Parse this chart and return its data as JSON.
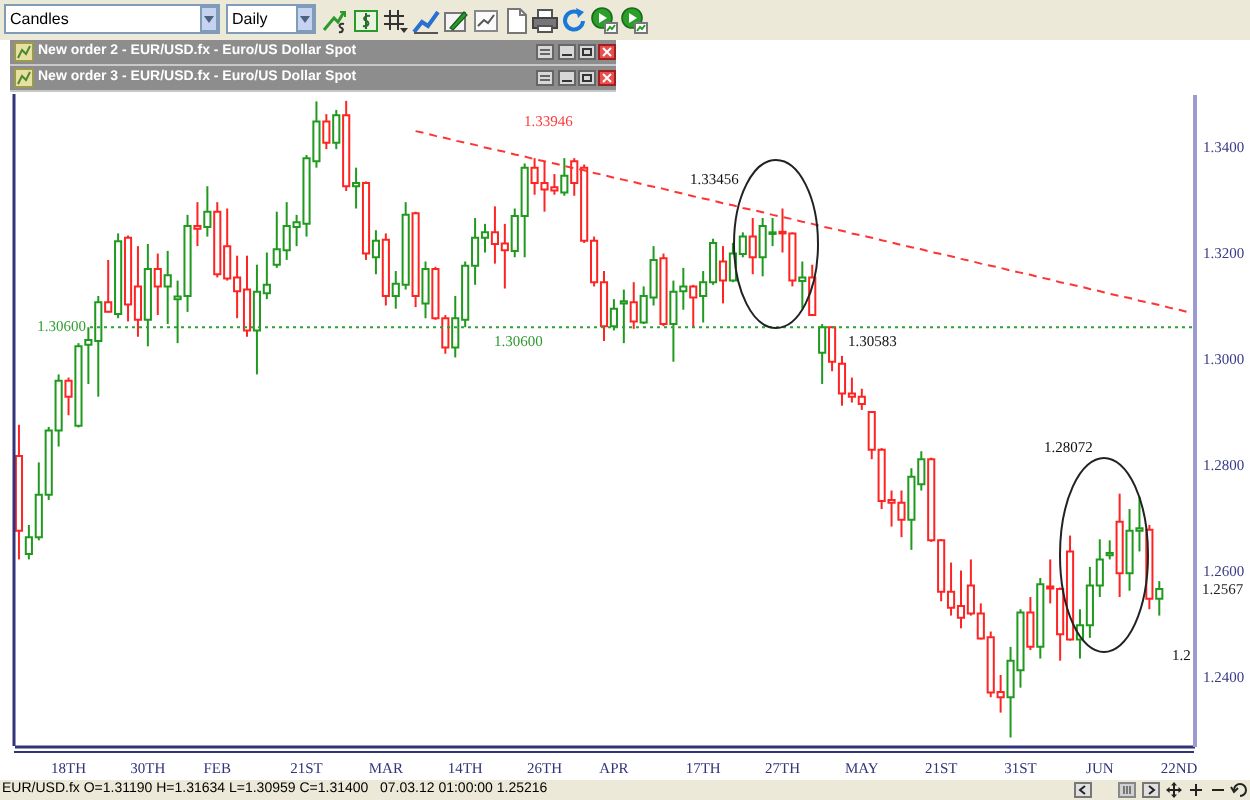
{
  "chart_data": {
    "type": "candlestick",
    "categories": [
      null,
      null,
      null,
      null,
      null,
      "18TH",
      null,
      null,
      null,
      null,
      null,
      null,
      null,
      "30TH",
      null,
      null,
      null,
      null,
      null,
      null,
      "FEB",
      null,
      null,
      null,
      null,
      null,
      null,
      null,
      null,
      "21ST",
      null,
      null,
      null,
      null,
      null,
      null,
      null,
      "MAR",
      null,
      null,
      null,
      null,
      null,
      null,
      null,
      "14TH",
      null,
      null,
      null,
      null,
      null,
      null,
      null,
      "26TH",
      null,
      null,
      null,
      null,
      null,
      null,
      "APR",
      null,
      null,
      null,
      null,
      null,
      null,
      null,
      null,
      "17TH",
      null,
      null,
      null,
      null,
      null,
      null,
      null,
      "27TH",
      null,
      null,
      null,
      null,
      null,
      null,
      null,
      "MAY",
      null,
      null,
      null,
      null,
      null,
      null,
      null,
      "21ST",
      null,
      null,
      null,
      null,
      null,
      null,
      null,
      "31ST",
      null,
      null,
      null,
      null,
      null,
      null,
      null,
      "JUN",
      null,
      null,
      null,
      null,
      null,
      null,
      null,
      "22ND",
      null
    ],
    "ohlc": [
      [
        1.2817,
        1.2876,
        1.2622,
        1.2676
      ],
      [
        1.2632,
        1.2687,
        1.2622,
        1.2664
      ],
      [
        1.2664,
        1.2805,
        1.2658,
        1.2744
      ],
      [
        1.2744,
        1.2872,
        1.2734,
        1.2865
      ],
      [
        1.2865,
        1.2971,
        1.2835,
        1.2959
      ],
      [
        1.2959,
        1.2965,
        1.2894,
        1.2929
      ],
      [
        1.2874,
        1.303,
        1.2871,
        1.3024
      ],
      [
        1.3027,
        1.306,
        1.2953,
        1.3036
      ],
      [
        1.3034,
        1.3119,
        1.2929,
        1.3107
      ],
      [
        1.3107,
        1.3187,
        1.3088,
        1.3089
      ],
      [
        1.3085,
        1.3237,
        1.3077,
        1.3222
      ],
      [
        1.3229,
        1.3233,
        1.3071,
        1.3103
      ],
      [
        1.3137,
        1.3213,
        1.3042,
        1.3074
      ],
      [
        1.3074,
        1.3217,
        1.3024,
        1.317
      ],
      [
        1.317,
        1.3199,
        1.3083,
        1.3137
      ],
      [
        1.3137,
        1.3204,
        1.3066,
        1.3158
      ],
      [
        1.3113,
        1.3148,
        1.303,
        1.3118
      ],
      [
        1.3119,
        1.3272,
        1.3089,
        1.3251
      ],
      [
        1.3251,
        1.3296,
        1.3213,
        1.3246
      ],
      [
        1.3249,
        1.3326,
        1.3231,
        1.3278
      ],
      [
        1.3278,
        1.3296,
        1.3154,
        1.316
      ],
      [
        1.3213,
        1.3284,
        1.3148,
        1.3152
      ],
      [
        1.3154,
        1.3195,
        1.3077,
        1.3128
      ],
      [
        1.3131,
        1.3195,
        1.3042,
        1.3054
      ],
      [
        1.3054,
        1.3178,
        1.2971,
        1.3127
      ],
      [
        1.3124,
        1.3201,
        1.3113,
        1.314
      ],
      [
        1.3178,
        1.3278,
        1.3172,
        1.3207
      ],
      [
        1.3205,
        1.3296,
        1.3187,
        1.3251
      ],
      [
        1.3249,
        1.3272,
        1.3213,
        1.3258
      ],
      [
        1.3255,
        1.3385,
        1.3231,
        1.3379
      ],
      [
        1.3373,
        1.3486,
        1.3361,
        1.3448
      ],
      [
        1.3448,
        1.3462,
        1.3396,
        1.3408
      ],
      [
        1.3408,
        1.347,
        1.3396,
        1.346
      ],
      [
        1.346,
        1.3487,
        1.3317,
        1.3326
      ],
      [
        1.3326,
        1.3361,
        1.3284,
        1.3332
      ],
      [
        1.3332,
        1.3335,
        1.3187,
        1.3199
      ],
      [
        1.3192,
        1.3243,
        1.316,
        1.3223
      ],
      [
        1.3225,
        1.3237,
        1.3101,
        1.3119
      ],
      [
        1.3119,
        1.3166,
        1.3095,
        1.3142
      ],
      [
        1.314,
        1.3296,
        1.3131,
        1.3272
      ],
      [
        1.3275,
        1.3278,
        1.3098,
        1.3119
      ],
      [
        1.3105,
        1.3184,
        1.3077,
        1.317
      ],
      [
        1.317,
        1.3174,
        1.3074,
        1.3077
      ],
      [
        1.3077,
        1.3083,
        1.301,
        1.3022
      ],
      [
        1.3022,
        1.3119,
        1.3003,
        1.3077
      ],
      [
        1.3074,
        1.3184,
        1.306,
        1.3176
      ],
      [
        1.3176,
        1.3266,
        1.314,
        1.3229
      ],
      [
        1.3229,
        1.3255,
        1.3201,
        1.3239
      ],
      [
        1.3239,
        1.3288,
        1.318,
        1.3217
      ],
      [
        1.3218,
        1.3255,
        1.3133,
        1.3205
      ],
      [
        1.3204,
        1.3284,
        1.3192,
        1.327
      ],
      [
        1.327,
        1.3369,
        1.3192,
        1.3361
      ],
      [
        1.3361,
        1.3379,
        1.331,
        1.3332
      ],
      [
        1.3332,
        1.3373,
        1.3278,
        1.332
      ],
      [
        1.3324,
        1.3349,
        1.331,
        1.3318
      ],
      [
        1.3314,
        1.3379,
        1.3308,
        1.3346
      ],
      [
        1.3373,
        1.3379,
        1.3308,
        1.3332
      ],
      [
        1.3361,
        1.3367,
        1.3219,
        1.3223
      ],
      [
        1.3223,
        1.3231,
        1.3137,
        1.3145
      ],
      [
        1.3145,
        1.3166,
        1.3034,
        1.3062
      ],
      [
        1.3062,
        1.3113,
        1.3054,
        1.3095
      ],
      [
        1.3105,
        1.3131,
        1.303,
        1.3109
      ],
      [
        1.3107,
        1.3145,
        1.3057,
        1.3071
      ],
      [
        1.3069,
        1.3137,
        1.3066,
        1.3119
      ],
      [
        1.3116,
        1.3213,
        1.3101,
        1.3187
      ],
      [
        1.319,
        1.3199,
        1.3062,
        1.3066
      ],
      [
        1.3066,
        1.3148,
        1.2995,
        1.3127
      ],
      [
        1.3128,
        1.3172,
        1.3093,
        1.3137
      ],
      [
        1.3137,
        1.314,
        1.306,
        1.3116
      ],
      [
        1.3119,
        1.3166,
        1.3069,
        1.3145
      ],
      [
        1.3145,
        1.3227,
        1.314,
        1.3219
      ],
      [
        1.3184,
        1.3213,
        1.3105,
        1.3148
      ],
      [
        1.3148,
        1.3219,
        1.3145,
        1.3199
      ],
      [
        1.3198,
        1.3239,
        1.3192,
        1.3231
      ],
      [
        1.3231,
        1.3266,
        1.316,
        1.3192
      ],
      [
        1.3192,
        1.3266,
        1.3156,
        1.3251
      ],
      [
        1.3236,
        1.3266,
        1.3213,
        1.3239
      ],
      [
        1.324,
        1.3284,
        1.3201,
        1.3237
      ],
      [
        1.3237,
        1.3239,
        1.3137,
        1.3148
      ],
      [
        1.3147,
        1.3184,
        1.3095,
        1.3154
      ],
      [
        1.3154,
        1.3178,
        1.3081,
        1.3083
      ],
      [
        1.3012,
        1.3066,
        1.2953,
        1.306
      ],
      [
        1.306,
        1.3062,
        1.2977,
        1.2995
      ],
      [
        1.2991,
        1.3006,
        1.2912,
        1.2935
      ],
      [
        1.2935,
        1.2965,
        1.2918,
        1.2929
      ],
      [
        1.2929,
        1.2944,
        1.2904,
        1.2915
      ],
      [
        1.29,
        1.2902,
        1.2811,
        1.2829
      ],
      [
        1.2829,
        1.2832,
        1.2717,
        1.2732
      ],
      [
        1.2734,
        1.2752,
        1.2684,
        1.2729
      ],
      [
        1.2729,
        1.2752,
        1.2664,
        1.2697
      ],
      [
        1.2697,
        1.2794,
        1.264,
        1.2778
      ],
      [
        1.2764,
        1.2826,
        1.2752,
        1.2811
      ],
      [
        1.2811,
        1.2814,
        1.2655,
        1.2658
      ],
      [
        1.2658,
        1.266,
        1.2543,
        1.2561
      ],
      [
        1.2561,
        1.2616,
        1.2516,
        1.2531
      ],
      [
        1.2534,
        1.2601,
        1.2492,
        1.2512
      ],
      [
        1.2573,
        1.2622,
        1.2516,
        1.252
      ],
      [
        1.252,
        1.2539,
        1.2471,
        1.2473
      ],
      [
        1.2475,
        1.2486,
        1.2362,
        1.2371
      ],
      [
        1.2372,
        1.2404,
        1.2333,
        1.2362
      ],
      [
        1.2362,
        1.2457,
        1.2286,
        1.2431
      ],
      [
        1.2413,
        1.2528,
        1.238,
        1.2522
      ],
      [
        1.2522,
        1.2551,
        1.2451,
        1.2457
      ],
      [
        1.2457,
        1.2587,
        1.2435,
        1.2575
      ],
      [
        1.2571,
        1.2622,
        1.2539,
        1.2567
      ],
      [
        1.2566,
        1.2569,
        1.2431,
        1.2481
      ],
      [
        1.2637,
        1.2667,
        1.2469,
        1.2471
      ],
      [
        1.2471,
        1.2528,
        1.2435,
        1.2498
      ],
      [
        1.2498,
        1.2608,
        1.2474,
        1.2573
      ],
      [
        1.2573,
        1.266,
        1.2551,
        1.2622
      ],
      [
        1.263,
        1.2658,
        1.2622,
        1.2634
      ],
      [
        1.2693,
        1.2746,
        1.2551,
        1.2596
      ],
      [
        1.2596,
        1.2717,
        1.2563,
        1.2676
      ],
      [
        1.2676,
        1.274,
        1.2637,
        1.2681
      ],
      [
        1.2678,
        1.2687,
        1.2528,
        1.2548
      ],
      [
        1.2548,
        1.2581,
        1.2516,
        1.2566
      ],
      null,
      null,
      null
    ],
    "colors": [
      "#ff2424",
      "#1f9a1f",
      "#1f9a1f",
      "#1f9a1f",
      "#1f9a1f",
      "#ff2424",
      "#1f9a1f",
      "#1f9a1f",
      "#1f9a1f",
      "#ff2424",
      "#1f9a1f",
      "#ff2424",
      "#ff2424",
      "#1f9a1f",
      "#ff2424",
      "#1f9a1f",
      "#1f9a1f",
      "#1f9a1f",
      "#ff2424",
      "#1f9a1f",
      "#ff2424",
      "#ff2424",
      "#ff2424",
      "#ff2424",
      "#1f9a1f",
      "#1f9a1f",
      "#1f9a1f",
      "#1f9a1f",
      "#1f9a1f",
      "#1f9a1f",
      "#1f9a1f",
      "#ff2424",
      "#1f9a1f",
      "#ff2424",
      "#1f9a1f",
      "#ff2424",
      "#1f9a1f",
      "#ff2424",
      "#1f9a1f",
      "#1f9a1f",
      "#ff2424",
      "#1f9a1f",
      "#ff2424",
      "#ff2424",
      "#1f9a1f",
      "#1f9a1f",
      "#1f9a1f",
      "#1f9a1f",
      "#ff2424",
      "#ff2424",
      "#1f9a1f",
      "#1f9a1f",
      "#ff2424",
      "#ff2424",
      "#ff2424",
      "#1f9a1f",
      "#ff2424",
      "#ff2424",
      "#ff2424",
      "#ff2424",
      "#1f9a1f",
      "#1f9a1f",
      "#ff2424",
      "#1f9a1f",
      "#1f9a1f",
      "#ff2424",
      "#1f9a1f",
      "#1f9a1f",
      "#ff2424",
      "#1f9a1f",
      "#1f9a1f",
      "#ff2424",
      "#1f9a1f",
      "#1f9a1f",
      "#ff2424",
      "#1f9a1f",
      "#1f9a1f",
      "#ff2424",
      "#ff2424",
      "#1f9a1f",
      "#ff2424",
      "#1f9a1f",
      "#ff2424",
      "#ff2424",
      "#ff2424",
      "#ff2424",
      "#ff2424",
      "#ff2424",
      "#ff2424",
      "#ff2424",
      "#1f9a1f",
      "#1f9a1f",
      "#ff2424",
      "#ff2424",
      "#ff2424",
      "#ff2424",
      "#ff2424",
      "#ff2424",
      "#ff2424",
      "#ff2424",
      "#1f9a1f",
      "#1f9a1f",
      "#ff2424",
      "#1f9a1f",
      "#ff2424",
      "#ff2424",
      "#ff2424",
      "#1f9a1f",
      "#1f9a1f",
      "#1f9a1f",
      "#1f9a1f",
      "#ff2424",
      "#1f9a1f",
      "#1f9a1f",
      "#ff2424",
      "#1f9a1f",
      null,
      null,
      null
    ],
    "series": [
      {
        "type": "line",
        "color": "#ff3333",
        "line_style": "dashed",
        "values": [
          null,
          null,
          null,
          null,
          null,
          null,
          null,
          null,
          null,
          null,
          null,
          null,
          null,
          null,
          null,
          null,
          null,
          null,
          null,
          null,
          null,
          null,
          null,
          null,
          null,
          null,
          null,
          null,
          null,
          null,
          null,
          null,
          null,
          null,
          null,
          null,
          null,
          null,
          null,
          null,
          1.343,
          1.3426,
          1.3421,
          1.3417,
          1.3412,
          1.3408,
          1.3404,
          1.3399,
          1.3395,
          1.3391,
          1.3386,
          1.3382,
          1.3377,
          1.3373,
          1.3369,
          1.3364,
          1.336,
          1.3356,
          1.3351,
          1.3347,
          1.3342,
          1.3338,
          1.3334,
          1.3329,
          1.3325,
          1.3321,
          1.3316,
          1.3312,
          1.3307,
          1.3303,
          1.3299,
          1.3294,
          1.329,
          1.3285,
          1.3281,
          1.3277,
          1.3272,
          1.3268,
          1.3264,
          1.3259,
          1.3255,
          1.325,
          1.3246,
          1.3242,
          1.3237,
          1.3233,
          1.3229,
          1.3224,
          1.322,
          1.3215,
          1.3211,
          1.3207,
          1.3202,
          1.3198,
          1.3194,
          1.3189,
          1.3185,
          1.318,
          1.3176,
          1.3172,
          1.3167,
          1.3163,
          1.3159,
          1.3154,
          1.315,
          1.3145,
          1.3141,
          1.3137,
          1.3132,
          1.3128,
          1.3123,
          1.3119,
          1.3115,
          1.311,
          1.3106,
          1.3102,
          1.3097,
          1.3093,
          1.3088
        ]
      }
    ],
    "ylim": [
      1.227,
      1.35
    ],
    "yticks": [
      {
        "value": 1.24,
        "label": "1.2400"
      },
      {
        "value": 1.26,
        "label": "1.2600"
      },
      {
        "value": 1.28,
        "label": "1.2800"
      },
      {
        "value": 1.3,
        "label": "1.3000"
      },
      {
        "value": 1.32,
        "label": "1.3200"
      },
      {
        "value": 1.34,
        "label": "1.3400"
      }
    ],
    "ref_lines": [
      {
        "axis": "y",
        "value": 1.306,
        "label": "1.30600",
        "color": "#33a033",
        "line_style": "dotted"
      }
    ],
    "annotations": [
      "Candles",
      "Daily",
      "New order 2 - EUR/USD.fx - Euro/US Dollar Spot",
      "New order 3 - EUR/USD.fx - Euro/US Dollar Spot",
      "EUR/USD.fx O=1.31190 H=1.31634 L=1.30959 C=1.31400   07.03.12 01:00:00 1.25216",
      "1.33946",
      "1.33456",
      "1.30600",
      "1.30583",
      "1.28072",
      "1.2",
      "1.2567"
    ]
  }
}
